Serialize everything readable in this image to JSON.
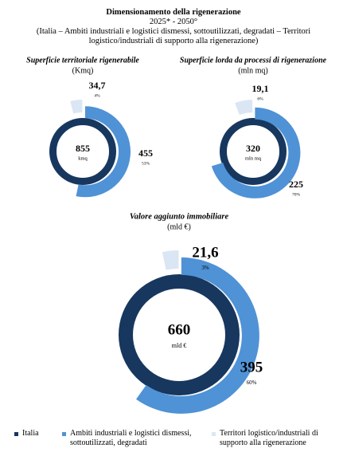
{
  "title": "Dimensionamento della rigenerazione",
  "subtitle": "2025* - 2050°",
  "note": "(Italia – Ambiti industriali e logistici dismessi, sottoutilizzati, degradati – Territori logistico/industriali di supporto alla rigenerazione)",
  "legend": [
    {
      "name": "Italia",
      "color": "#17375e"
    },
    {
      "name": "Ambiti industriali e logistici dismessi, sottoutilizzati, degradati",
      "color": "#4f92d6"
    },
    {
      "name": "Territori logistico/industriali di supporto alla rigenerazione",
      "color": "#dbe6f4"
    }
  ],
  "chart_data": [
    {
      "type": "donut",
      "title": "Superficie territoriale rigenerabile",
      "unit": "(Kmq)",
      "total": {
        "value": 855,
        "unit": "kmq"
      },
      "segments": [
        {
          "value": 455,
          "share": 53,
          "share_label": "53%"
        },
        {
          "value": 34.7,
          "value_label": "34,7",
          "share": 4,
          "share_label": "4%"
        }
      ]
    },
    {
      "type": "donut",
      "title": "Superficie lorda da processi di rigenerazione",
      "unit": "(mln mq)",
      "total": {
        "value": 320,
        "unit": "mln mq"
      },
      "segments": [
        {
          "value": 225,
          "share": 70,
          "share_label": "70%"
        },
        {
          "value": 19.1,
          "value_label": "19,1",
          "share": 6,
          "share_label": "6%"
        }
      ]
    },
    {
      "type": "donut",
      "title": "Valore aggiunto immobiliare",
      "unit": "(mld €)",
      "total": {
        "value": 660,
        "unit": "mld €"
      },
      "segments": [
        {
          "value": 395,
          "share": 60,
          "share_label": "60%"
        },
        {
          "value": 21.6,
          "value_label": "21,6",
          "share": 3,
          "share_label": "3%"
        }
      ]
    }
  ]
}
